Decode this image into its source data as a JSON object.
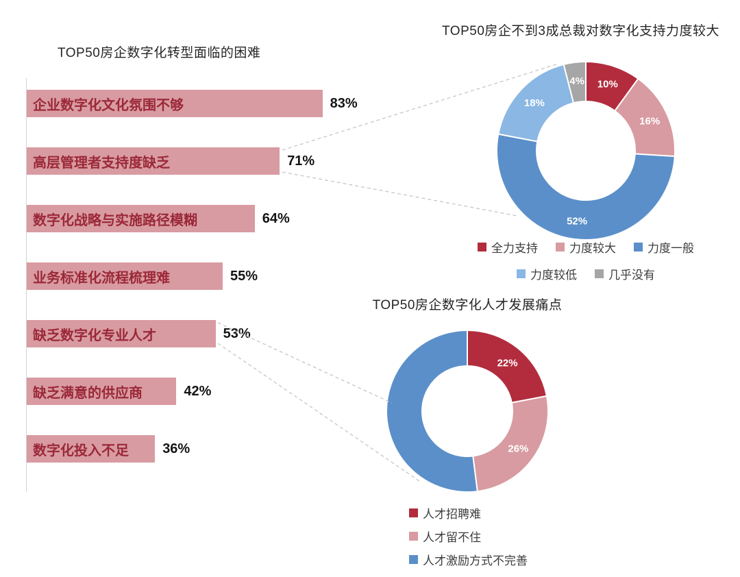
{
  "page": {
    "background": "#ffffff"
  },
  "chart_data": [
    {
      "id": "bar-difficulties",
      "type": "bar",
      "orientation": "horizontal",
      "title": "TOP50房企数字化转型面临的困难",
      "categories": [
        "企业数字化文化氛围不够",
        "高层管理者支持度缺乏",
        "数字化战略与实施路径模糊",
        "业务标准化流程梳理难",
        "缺乏数字化专业人才",
        "缺乏满意的供应商",
        "数字化投入不足"
      ],
      "values": [
        83,
        71,
        64,
        55,
        53,
        42,
        36
      ],
      "value_labels": [
        "83%",
        "71%",
        "64%",
        "55%",
        "53%",
        "42%",
        "36%"
      ],
      "xlim": [
        0,
        100
      ],
      "grid": false,
      "bar_color": "#d89ba1",
      "category_label_color": "#9b2839",
      "value_label_color": "#141414"
    },
    {
      "id": "donut-ceo-support",
      "type": "pie",
      "subtype": "donut",
      "title": "TOP50房企不到3成总裁对数字化支持力度较大",
      "slices": [
        {
          "label": "全力支持",
          "value": 10,
          "pct_label": "10%",
          "color": "#b22c3d"
        },
        {
          "label": "力度较大",
          "value": 16,
          "pct_label": "16%",
          "color": "#d89ba1"
        },
        {
          "label": "力度一般",
          "value": 52,
          "pct_label": "52%",
          "color": "#5b8fc9"
        },
        {
          "label": "力度较低",
          "value": 18,
          "pct_label": "18%",
          "color": "#8ab7e3"
        },
        {
          "label": "几乎没有",
          "value": 4,
          "pct_label": "4%",
          "color": "#a6a6a6"
        }
      ],
      "legend_rows": [
        [
          0,
          1,
          2
        ],
        [
          3,
          4
        ]
      ],
      "legend_position": "bottom-center"
    },
    {
      "id": "donut-talent-pain",
      "type": "pie",
      "subtype": "donut",
      "title": "TOP50房企数字化人才发展痛点",
      "slices": [
        {
          "label": "人才招聘难",
          "value": 22,
          "pct_label": "22%",
          "color": "#b22c3d"
        },
        {
          "label": "人才留不住",
          "value": 26,
          "pct_label": "26%",
          "color": "#d89ba1"
        },
        {
          "label": "人才激励方式不完善",
          "value": 52,
          "pct_label": "",
          "color": "#5b8fc9"
        }
      ],
      "legend_rows": [
        [
          0
        ],
        [
          1
        ],
        [
          2
        ]
      ],
      "legend_position": "bottom-left"
    }
  ]
}
